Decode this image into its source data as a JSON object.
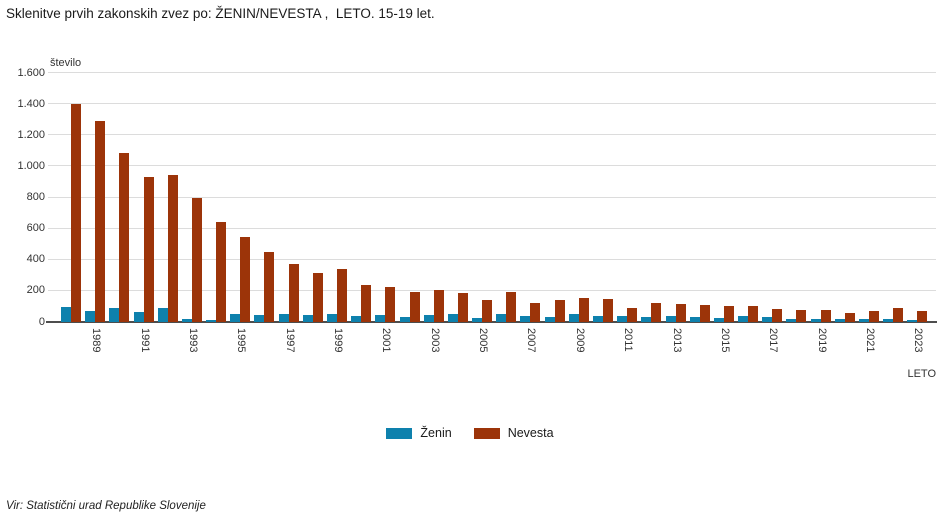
{
  "title": "Sklenitve prvih zakonskih zvez po: ŽENIN/NEVESTA ,  LETO. 15-19 let.",
  "source": "Vir: Statistični urad Republike Slovenije",
  "colors": {
    "zenin": "#0e81ad",
    "nevesta": "#9c3409",
    "grid": "#dcdcdc",
    "axis": "#4d4d4d",
    "text": "#333333"
  },
  "legend": {
    "zenin_label": "Ženin",
    "nevesta_label": "Nevesta"
  },
  "chart_data": {
    "type": "bar",
    "title": "Sklenitve prvih zakonskih zvez po: ŽENIN/NEVESTA ,  LETO. 15-19 let.",
    "ylabel": "število",
    "xlabel": "LETO",
    "ylim": [
      0,
      1600
    ],
    "grid": "horizontal",
    "legend_position": "bottom",
    "ytick_values": [
      0,
      200,
      400,
      600,
      800,
      1000,
      1200,
      1400,
      1600
    ],
    "ytick_labels": [
      "0",
      "200",
      "400",
      "600",
      "800",
      "1.000",
      "1.200",
      "1.400",
      "1.600"
    ],
    "categories": [
      1988,
      1989,
      1990,
      1991,
      1992,
      1993,
      1994,
      1995,
      1996,
      1997,
      1998,
      1999,
      2000,
      2001,
      2002,
      2003,
      2004,
      2005,
      2006,
      2007,
      2008,
      2009,
      2010,
      2011,
      2012,
      2013,
      2014,
      2015,
      2016,
      2017,
      2018,
      2019,
      2020,
      2021,
      2022,
      2023
    ],
    "x_tick_labels": [
      "1989",
      "1991",
      "1993",
      "1995",
      "1997",
      "1999",
      "2001",
      "2003",
      "2005",
      "2007",
      "2009",
      "2011",
      "2013",
      "2015",
      "2017",
      "2019",
      "2021",
      "2023"
    ],
    "series": [
      {
        "name": "Ženin",
        "color": "#0e81ad",
        "values": [
          95,
          70,
          90,
          65,
          88,
          20,
          15,
          54,
          44,
          50,
          47,
          50,
          38,
          45,
          34,
          45,
          49,
          28,
          49,
          39,
          32,
          50,
          40,
          39,
          33,
          39,
          33,
          26,
          38,
          30,
          21,
          21,
          17,
          20,
          17,
          12
        ]
      },
      {
        "name": "Nevesta",
        "color": "#9c3409",
        "values": [
          1400,
          1290,
          1085,
          935,
          945,
          800,
          640,
          548,
          449,
          373,
          313,
          339,
          235,
          228,
          195,
          203,
          187,
          140,
          192,
          124,
          144,
          156,
          150,
          93,
          125,
          114,
          107,
          105,
          100,
          86,
          75,
          77,
          56,
          70,
          89,
          68
        ]
      }
    ]
  }
}
